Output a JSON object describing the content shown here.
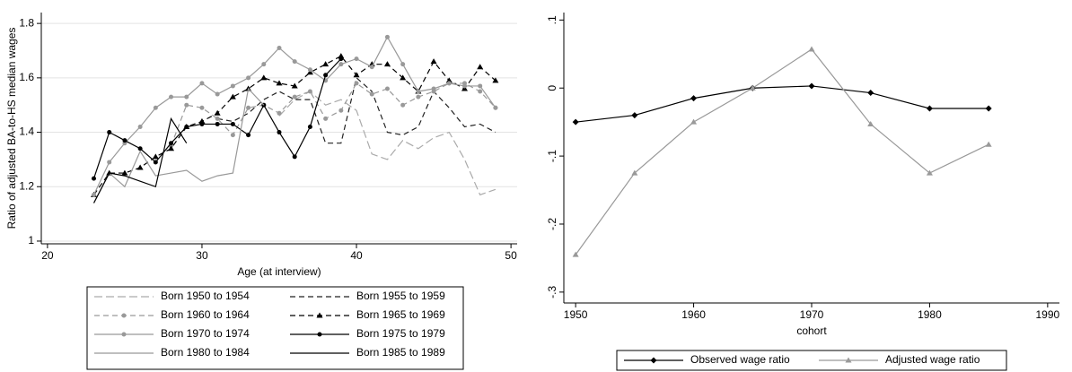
{
  "chart_data": [
    {
      "type": "line",
      "y_label": "Ratio of adjusted BA-to-HS median wages",
      "x_label": "Age (at interview)",
      "x": [
        23,
        24,
        25,
        26,
        27,
        28,
        29,
        30,
        31,
        32,
        33,
        34,
        35,
        36,
        37,
        38,
        39,
        40,
        41,
        42,
        43,
        44,
        45,
        46,
        47,
        48,
        49
      ],
      "xlim": [
        19.6,
        50.4
      ],
      "xticks": [
        20,
        30,
        40,
        50
      ],
      "ylim": [
        0.99,
        1.84
      ],
      "yticks": [
        1,
        1.2,
        1.4,
        1.6,
        1.8
      ],
      "grid": true,
      "legend": "bottom",
      "series": [
        {
          "name": "Born 1950 to 1954",
          "color": "#aaaaaa",
          "style": "long-dash",
          "marker": "none",
          "values": [
            null,
            null,
            null,
            null,
            null,
            null,
            null,
            null,
            null,
            null,
            null,
            null,
            1.46,
            1.52,
            1.55,
            1.5,
            1.52,
            1.48,
            1.32,
            1.3,
            1.37,
            1.34,
            1.38,
            1.4,
            1.3,
            1.17,
            1.19
          ]
        },
        {
          "name": "Born 1955 to 1959",
          "color": "#222222",
          "style": "dash",
          "marker": "none",
          "values": [
            null,
            null,
            null,
            null,
            null,
            null,
            null,
            null,
            1.45,
            1.44,
            1.47,
            1.52,
            1.55,
            1.52,
            1.52,
            1.36,
            1.36,
            1.6,
            1.55,
            1.4,
            1.39,
            1.42,
            1.55,
            1.49,
            1.42,
            1.43,
            1.4
          ]
        },
        {
          "name": "Born 1960 to 1964",
          "color": "#999999",
          "style": "dash",
          "marker": "circle",
          "values": [
            null,
            null,
            null,
            null,
            null,
            1.35,
            1.5,
            1.49,
            1.45,
            1.39,
            1.49,
            1.5,
            1.47,
            1.53,
            1.55,
            1.45,
            1.48,
            1.58,
            1.54,
            1.56,
            1.5,
            1.53,
            1.55,
            1.58,
            1.58,
            1.55,
            1.49
          ]
        },
        {
          "name": "Born 1965 to 1969",
          "color": "#000000",
          "style": "dash",
          "marker": "triangle",
          "values": [
            1.17,
            1.25,
            1.25,
            1.27,
            1.31,
            1.34,
            1.42,
            1.44,
            1.47,
            1.53,
            1.56,
            1.6,
            1.58,
            1.57,
            1.62,
            1.65,
            1.68,
            1.61,
            1.65,
            1.65,
            1.6,
            1.55,
            1.66,
            1.59,
            1.56,
            1.64,
            1.59
          ]
        },
        {
          "name": "Born 1970 to 1974",
          "color": "#999999",
          "style": "solid",
          "marker": "circle",
          "values": [
            1.17,
            1.29,
            1.36,
            1.42,
            1.49,
            1.53,
            1.53,
            1.58,
            1.54,
            1.57,
            1.6,
            1.65,
            1.71,
            1.66,
            1.63,
            1.59,
            1.65,
            1.67,
            1.64,
            1.75,
            1.65,
            1.55,
            1.56,
            1.58,
            1.57,
            1.57,
            1.49
          ]
        },
        {
          "name": "Born 1975 to 1979",
          "color": "#000000",
          "style": "solid",
          "marker": "circle",
          "values": [
            1.23,
            1.4,
            1.37,
            1.34,
            1.29,
            1.36,
            1.42,
            1.43,
            1.43,
            1.43,
            1.39,
            1.5,
            1.4,
            1.31,
            1.42,
            1.61,
            1.67,
            null,
            null,
            null,
            null,
            null,
            null,
            null,
            null,
            null,
            null
          ]
        },
        {
          "name": "Born 1980 to 1984",
          "color": "#999999",
          "style": "solid",
          "marker": "none",
          "values": [
            1.14,
            1.25,
            1.2,
            1.33,
            1.24,
            1.25,
            1.26,
            1.22,
            1.24,
            1.25,
            1.56,
            1.5,
            null,
            null,
            null,
            null,
            null,
            null,
            null,
            null,
            null,
            null,
            null,
            null,
            null,
            null,
            null
          ]
        },
        {
          "name": "Born 1985 to 1989",
          "color": "#000000",
          "style": "solid",
          "marker": "none",
          "values": [
            1.14,
            1.25,
            1.24,
            1.22,
            1.2,
            1.45,
            1.36,
            null,
            null,
            null,
            null,
            null,
            null,
            null,
            null,
            null,
            null,
            null,
            null,
            null,
            null,
            null,
            null,
            null,
            null,
            null,
            null
          ]
        }
      ]
    },
    {
      "type": "line",
      "x_label": "cohort",
      "x": [
        1950,
        1955,
        1960,
        1965,
        1970,
        1975,
        1980,
        1985
      ],
      "xlim": [
        1949,
        1991
      ],
      "xticks": [
        1950,
        1960,
        1970,
        1980,
        1990
      ],
      "ylim": [
        -0.316,
        0.111
      ],
      "yticks": [
        {
          "value": -0.3,
          "label": "-.3"
        },
        {
          "value": -0.2,
          "label": "-.2"
        },
        {
          "value": -0.1,
          "label": "-.1"
        },
        0,
        {
          "value": 0.1,
          "label": ".1"
        }
      ],
      "grid": false,
      "legend": "bottom",
      "series": [
        {
          "name": "Observed wage ratio",
          "color": "#000000",
          "style": "solid",
          "marker": "diamond",
          "values": [
            -0.05,
            -0.04,
            -0.015,
            0,
            0.003,
            -0.007,
            -0.03,
            -0.03
          ]
        },
        {
          "name": "Adjusted wage ratio",
          "color": "#999999",
          "style": "solid",
          "marker": "triangle",
          "values": [
            -0.245,
            -0.125,
            -0.05,
            0,
            0.057,
            -0.053,
            -0.125,
            -0.083
          ]
        }
      ]
    }
  ]
}
